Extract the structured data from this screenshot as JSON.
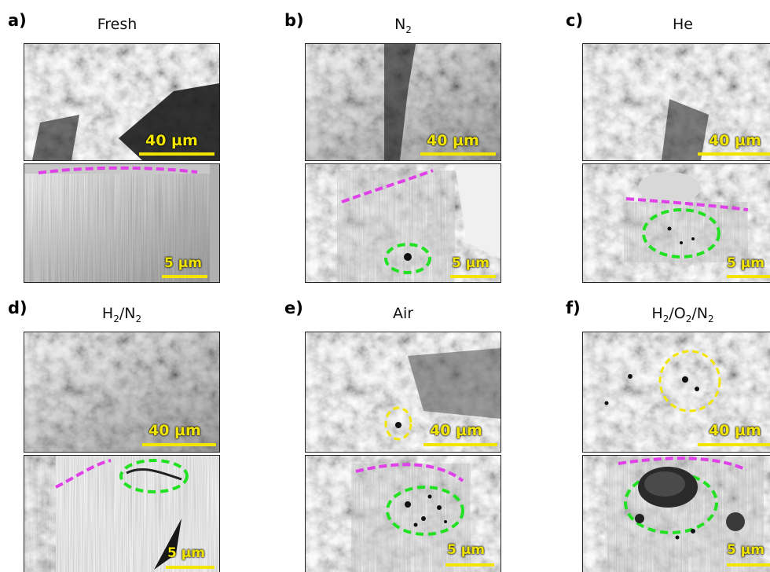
{
  "panels": [
    {
      "letter": "a)",
      "title": "Fresh",
      "top_scale": "40 µm",
      "bottom_scale": "5 µm"
    },
    {
      "letter": "b)",
      "title_main": "N",
      "title_sub": "2",
      "top_scale": "40 µm",
      "bottom_scale": "5 µm"
    },
    {
      "letter": "c)",
      "title": "He",
      "top_scale": "40 µm",
      "bottom_scale": "5 µm"
    },
    {
      "letter": "d)",
      "title_parts": [
        "H",
        "2",
        "/N",
        "2"
      ],
      "top_scale": "40 µm",
      "bottom_scale": "5 µm"
    },
    {
      "letter": "e)",
      "title": "Air",
      "top_scale": "40 µm",
      "bottom_scale": "5 µm"
    },
    {
      "letter": "f)",
      "title_parts": [
        "H",
        "2",
        "/O",
        "2",
        "/N",
        "2"
      ],
      "top_scale": "40 µm",
      "bottom_scale": "5 µm"
    }
  ],
  "colors": {
    "scale_bar": "#f2e600",
    "interface_line": "#e040e8",
    "void_region": "#22e022",
    "pore_region": "#f2e600"
  }
}
